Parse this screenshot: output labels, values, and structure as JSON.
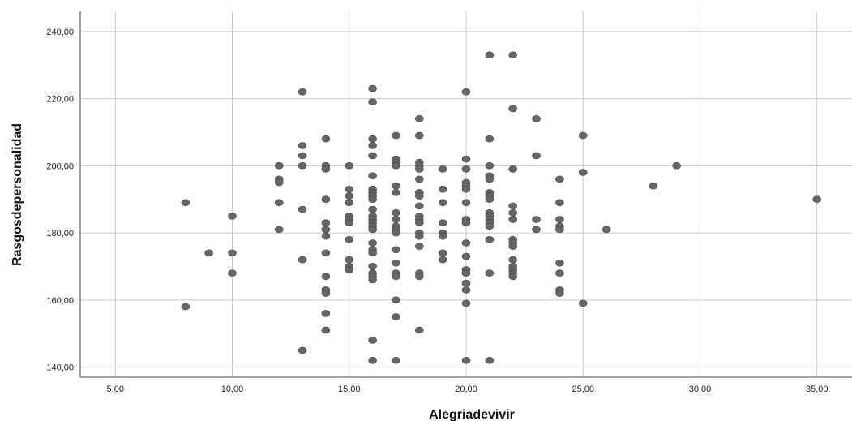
{
  "chart_data": {
    "type": "scatter",
    "title": "",
    "xlabel": "Alegriadevivir",
    "ylabel": "Rasgosdepersonalidad",
    "xlim": [
      3.5,
      36.5
    ],
    "ylim": [
      137,
      246
    ],
    "x_ticks": [
      5,
      10,
      15,
      20,
      25,
      30,
      35
    ],
    "y_ticks": [
      140,
      160,
      180,
      200,
      220,
      240
    ],
    "x_tick_labels": [
      "5,00",
      "10,00",
      "15,00",
      "20,00",
      "25,00",
      "30,00",
      "35,00"
    ],
    "y_tick_labels": [
      "140,00",
      "160,00",
      "180,00",
      "200,00",
      "220,00",
      "240,00"
    ],
    "grid": true,
    "points": [
      {
        "x": 8,
        "y": 189
      },
      {
        "x": 8,
        "y": 158
      },
      {
        "x": 9,
        "y": 174
      },
      {
        "x": 10,
        "y": 185
      },
      {
        "x": 10,
        "y": 174
      },
      {
        "x": 10,
        "y": 168
      },
      {
        "x": 12,
        "y": 200
      },
      {
        "x": 12,
        "y": 196
      },
      {
        "x": 12,
        "y": 195
      },
      {
        "x": 12,
        "y": 189
      },
      {
        "x": 12,
        "y": 181
      },
      {
        "x": 13,
        "y": 222
      },
      {
        "x": 13,
        "y": 206
      },
      {
        "x": 13,
        "y": 203
      },
      {
        "x": 13,
        "y": 200
      },
      {
        "x": 13,
        "y": 187
      },
      {
        "x": 13,
        "y": 172
      },
      {
        "x": 13,
        "y": 145
      },
      {
        "x": 14,
        "y": 208
      },
      {
        "x": 14,
        "y": 200
      },
      {
        "x": 14,
        "y": 199
      },
      {
        "x": 14,
        "y": 190
      },
      {
        "x": 14,
        "y": 183
      },
      {
        "x": 14,
        "y": 181
      },
      {
        "x": 14,
        "y": 179
      },
      {
        "x": 14,
        "y": 174
      },
      {
        "x": 14,
        "y": 167
      },
      {
        "x": 14,
        "y": 163
      },
      {
        "x": 14,
        "y": 162
      },
      {
        "x": 14,
        "y": 156
      },
      {
        "x": 14,
        "y": 151
      },
      {
        "x": 15,
        "y": 200
      },
      {
        "x": 15,
        "y": 193
      },
      {
        "x": 15,
        "y": 191
      },
      {
        "x": 15,
        "y": 189
      },
      {
        "x": 15,
        "y": 185
      },
      {
        "x": 15,
        "y": 184
      },
      {
        "x": 15,
        "y": 183
      },
      {
        "x": 15,
        "y": 178
      },
      {
        "x": 15,
        "y": 172
      },
      {
        "x": 15,
        "y": 170
      },
      {
        "x": 15,
        "y": 169
      },
      {
        "x": 16,
        "y": 223
      },
      {
        "x": 16,
        "y": 219
      },
      {
        "x": 16,
        "y": 208
      },
      {
        "x": 16,
        "y": 206
      },
      {
        "x": 16,
        "y": 203
      },
      {
        "x": 16,
        "y": 197
      },
      {
        "x": 16,
        "y": 193
      },
      {
        "x": 16,
        "y": 192
      },
      {
        "x": 16,
        "y": 191
      },
      {
        "x": 16,
        "y": 190
      },
      {
        "x": 16,
        "y": 187
      },
      {
        "x": 16,
        "y": 185
      },
      {
        "x": 16,
        "y": 184
      },
      {
        "x": 16,
        "y": 183
      },
      {
        "x": 16,
        "y": 182
      },
      {
        "x": 16,
        "y": 181
      },
      {
        "x": 16,
        "y": 177
      },
      {
        "x": 16,
        "y": 175
      },
      {
        "x": 16,
        "y": 174
      },
      {
        "x": 16,
        "y": 170
      },
      {
        "x": 16,
        "y": 168
      },
      {
        "x": 16,
        "y": 167
      },
      {
        "x": 16,
        "y": 166
      },
      {
        "x": 16,
        "y": 148
      },
      {
        "x": 16,
        "y": 142
      },
      {
        "x": 17,
        "y": 209
      },
      {
        "x": 17,
        "y": 202
      },
      {
        "x": 17,
        "y": 201
      },
      {
        "x": 17,
        "y": 200
      },
      {
        "x": 17,
        "y": 194
      },
      {
        "x": 17,
        "y": 192
      },
      {
        "x": 17,
        "y": 186
      },
      {
        "x": 17,
        "y": 184
      },
      {
        "x": 17,
        "y": 182
      },
      {
        "x": 17,
        "y": 181
      },
      {
        "x": 17,
        "y": 180
      },
      {
        "x": 17,
        "y": 175
      },
      {
        "x": 17,
        "y": 171
      },
      {
        "x": 17,
        "y": 168
      },
      {
        "x": 17,
        "y": 167
      },
      {
        "x": 17,
        "y": 160
      },
      {
        "x": 17,
        "y": 155
      },
      {
        "x": 17,
        "y": 142
      },
      {
        "x": 18,
        "y": 214
      },
      {
        "x": 18,
        "y": 209
      },
      {
        "x": 18,
        "y": 201
      },
      {
        "x": 18,
        "y": 200
      },
      {
        "x": 18,
        "y": 199
      },
      {
        "x": 18,
        "y": 196
      },
      {
        "x": 18,
        "y": 192
      },
      {
        "x": 18,
        "y": 191
      },
      {
        "x": 18,
        "y": 188
      },
      {
        "x": 18,
        "y": 185
      },
      {
        "x": 18,
        "y": 184
      },
      {
        "x": 18,
        "y": 183
      },
      {
        "x": 18,
        "y": 180
      },
      {
        "x": 18,
        "y": 179
      },
      {
        "x": 18,
        "y": 176
      },
      {
        "x": 18,
        "y": 168
      },
      {
        "x": 18,
        "y": 167
      },
      {
        "x": 18,
        "y": 151
      },
      {
        "x": 19,
        "y": 199
      },
      {
        "x": 19,
        "y": 193
      },
      {
        "x": 19,
        "y": 189
      },
      {
        "x": 19,
        "y": 183
      },
      {
        "x": 19,
        "y": 180
      },
      {
        "x": 19,
        "y": 179
      },
      {
        "x": 19,
        "y": 174
      },
      {
        "x": 19,
        "y": 172
      },
      {
        "x": 20,
        "y": 222
      },
      {
        "x": 20,
        "y": 202
      },
      {
        "x": 20,
        "y": 199
      },
      {
        "x": 20,
        "y": 195
      },
      {
        "x": 20,
        "y": 194
      },
      {
        "x": 20,
        "y": 193
      },
      {
        "x": 20,
        "y": 189
      },
      {
        "x": 20,
        "y": 184
      },
      {
        "x": 20,
        "y": 183
      },
      {
        "x": 20,
        "y": 177
      },
      {
        "x": 20,
        "y": 173
      },
      {
        "x": 20,
        "y": 169
      },
      {
        "x": 20,
        "y": 168
      },
      {
        "x": 20,
        "y": 165
      },
      {
        "x": 20,
        "y": 163
      },
      {
        "x": 20,
        "y": 159
      },
      {
        "x": 20,
        "y": 142
      },
      {
        "x": 21,
        "y": 233
      },
      {
        "x": 21,
        "y": 208
      },
      {
        "x": 21,
        "y": 200
      },
      {
        "x": 21,
        "y": 197
      },
      {
        "x": 21,
        "y": 196
      },
      {
        "x": 21,
        "y": 192
      },
      {
        "x": 21,
        "y": 191
      },
      {
        "x": 21,
        "y": 190
      },
      {
        "x": 21,
        "y": 186
      },
      {
        "x": 21,
        "y": 185
      },
      {
        "x": 21,
        "y": 184
      },
      {
        "x": 21,
        "y": 183
      },
      {
        "x": 21,
        "y": 182
      },
      {
        "x": 21,
        "y": 178
      },
      {
        "x": 21,
        "y": 168
      },
      {
        "x": 21,
        "y": 142
      },
      {
        "x": 22,
        "y": 233
      },
      {
        "x": 22,
        "y": 217
      },
      {
        "x": 22,
        "y": 199
      },
      {
        "x": 22,
        "y": 188
      },
      {
        "x": 22,
        "y": 186
      },
      {
        "x": 22,
        "y": 184
      },
      {
        "x": 22,
        "y": 178
      },
      {
        "x": 22,
        "y": 177
      },
      {
        "x": 22,
        "y": 176
      },
      {
        "x": 22,
        "y": 172
      },
      {
        "x": 22,
        "y": 170
      },
      {
        "x": 22,
        "y": 169
      },
      {
        "x": 22,
        "y": 168
      },
      {
        "x": 22,
        "y": 167
      },
      {
        "x": 23,
        "y": 214
      },
      {
        "x": 23,
        "y": 203
      },
      {
        "x": 23,
        "y": 184
      },
      {
        "x": 23,
        "y": 181
      },
      {
        "x": 24,
        "y": 196
      },
      {
        "x": 24,
        "y": 189
      },
      {
        "x": 24,
        "y": 184
      },
      {
        "x": 24,
        "y": 182
      },
      {
        "x": 24,
        "y": 181
      },
      {
        "x": 24,
        "y": 171
      },
      {
        "x": 24,
        "y": 168
      },
      {
        "x": 24,
        "y": 163
      },
      {
        "x": 24,
        "y": 162
      },
      {
        "x": 25,
        "y": 209
      },
      {
        "x": 25,
        "y": 198
      },
      {
        "x": 25,
        "y": 159
      },
      {
        "x": 26,
        "y": 181
      },
      {
        "x": 28,
        "y": 194
      },
      {
        "x": 29,
        "y": 200
      },
      {
        "x": 35,
        "y": 190
      }
    ]
  }
}
